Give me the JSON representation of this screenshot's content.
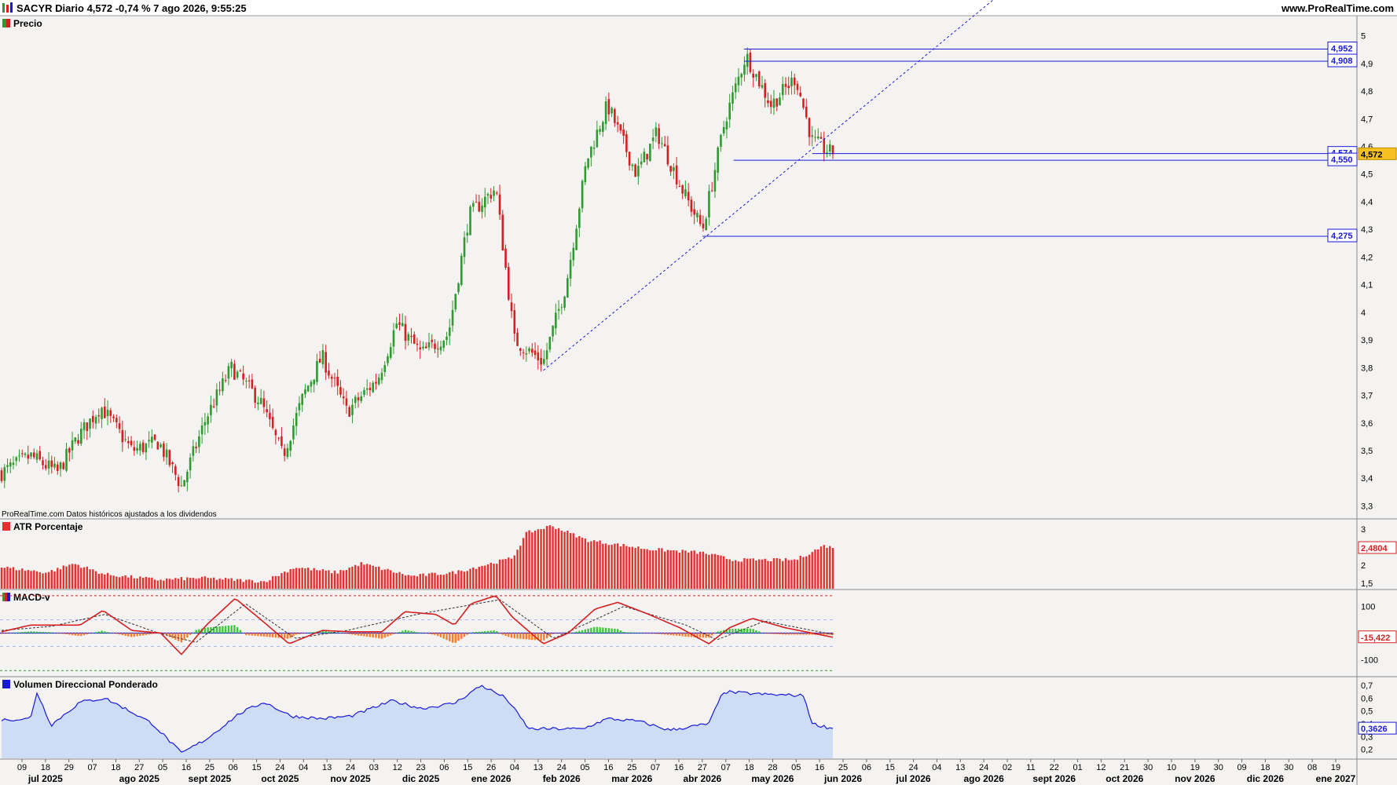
{
  "header": {
    "title": "SACYR Diario 4,572 -0,74 % 7 ago 2026, 9:55:25",
    "site": "www.ProRealTime.com"
  },
  "panels": {
    "price": {
      "title": "Precio",
      "note": "ProRealTime.com  Datos históricos ajustados a los dividendos",
      "icon": "candlestick-icon"
    },
    "atr": {
      "title": "ATR Porcentaje",
      "current_label": "2,4804"
    },
    "macd": {
      "title": "MACD-v",
      "current_label": "-15,422"
    },
    "vdp": {
      "title": "Volumen Direccional Ponderado",
      "current_label": "0,3626"
    }
  },
  "levels": [
    {
      "value": 4.952,
      "label": "4,952"
    },
    {
      "value": 4.908,
      "label": "4,908"
    },
    {
      "value": 4.574,
      "label": "4,574"
    },
    {
      "value": 4.55,
      "label": "4,550"
    },
    {
      "value": 4.275,
      "label": "4,275"
    }
  ],
  "last_price_label": "4,572",
  "x_axis": {
    "day_ticks": [
      "09",
      "18",
      "29",
      "07",
      "18",
      "27",
      "05",
      "16",
      "25",
      "06",
      "15",
      "24",
      "04",
      "13",
      "24",
      "03",
      "12",
      "23",
      "06",
      "15",
      "26",
      "04",
      "13",
      "24",
      "05",
      "16",
      "25",
      "07",
      "16",
      "27",
      "07",
      "18",
      "28",
      "05",
      "16",
      "25",
      "06",
      "15",
      "24",
      "04",
      "13",
      "24",
      "02",
      "11",
      "22",
      "01",
      "12",
      "21",
      "30",
      "10",
      "19",
      "30",
      "09",
      "18",
      "30",
      "08",
      "19"
    ],
    "months": [
      "jul 2025",
      "ago 2025",
      "sept 2025",
      "oct 2025",
      "nov 2025",
      "dic 2025",
      "ene 2026",
      "feb 2026",
      "mar 2026",
      "abr 2026",
      "may 2026",
      "jun 2026",
      "jul 2026",
      "ago 2026",
      "sept 2026",
      "oct 2026",
      "nov 2026",
      "dic 2026",
      "ene 2027"
    ]
  },
  "colors": {
    "up": "#2f9a2f",
    "down": "#d42020",
    "atr": "#e53030",
    "macd": "#d42020",
    "signal": "#333333",
    "hist_pos": "#3cc83c",
    "hist_neg": "#ff7a2a",
    "vdp_line": "#1a1ad6",
    "vdp_fill": "#cfdcf5",
    "level": "#1a1ad6",
    "trend": "#1a1ad6"
  },
  "chart_data": [
    {
      "type": "candlestick",
      "title": "Precio",
      "ylim": [
        3.27,
        5.05
      ],
      "y_ticks": [
        "5",
        "4,9",
        "4,8",
        "4,7",
        "4,6",
        "4,5",
        "4,4",
        "4,3",
        "4,2",
        "4,1",
        "4",
        "3,9",
        "3,8",
        "3,7",
        "3,6",
        "3,5",
        "3,4",
        "3,3"
      ],
      "approx_close_path": [
        {
          "date": "2025-07-01",
          "close": 3.42
        },
        {
          "date": "2025-07-15",
          "close": 3.48
        },
        {
          "date": "2025-07-28",
          "close": 3.42
        },
        {
          "date": "2025-08-07",
          "close": 3.55
        },
        {
          "date": "2025-08-18",
          "close": 3.66
        },
        {
          "date": "2025-09-02",
          "close": 3.5
        },
        {
          "date": "2025-09-15",
          "close": 3.53
        },
        {
          "date": "2025-09-26",
          "close": 3.37
        },
        {
          "date": "2025-10-08",
          "close": 3.62
        },
        {
          "date": "2025-10-20",
          "close": 3.8
        },
        {
          "date": "2025-11-03",
          "close": 3.68
        },
        {
          "date": "2025-11-14",
          "close": 3.48
        },
        {
          "date": "2025-11-24",
          "close": 3.7
        },
        {
          "date": "2025-12-03",
          "close": 3.84
        },
        {
          "date": "2025-12-15",
          "close": 3.64
        },
        {
          "date": "2025-12-30",
          "close": 3.76
        },
        {
          "date": "2026-01-08",
          "close": 3.96
        },
        {
          "date": "2026-01-20",
          "close": 3.85
        },
        {
          "date": "2026-02-02",
          "close": 3.92
        },
        {
          "date": "2026-02-12",
          "close": 4.35
        },
        {
          "date": "2026-02-25",
          "close": 4.45
        },
        {
          "date": "2026-03-06",
          "close": 3.9
        },
        {
          "date": "2026-03-20",
          "close": 3.82
        },
        {
          "date": "2026-03-31",
          "close": 4.1
        },
        {
          "date": "2026-04-10",
          "close": 4.55
        },
        {
          "date": "2026-04-20",
          "close": 4.75
        },
        {
          "date": "2026-05-04",
          "close": 4.5
        },
        {
          "date": "2026-05-14",
          "close": 4.65
        },
        {
          "date": "2026-05-27",
          "close": 4.43
        },
        {
          "date": "2026-06-05",
          "close": 4.3
        },
        {
          "date": "2026-06-16",
          "close": 4.7
        },
        {
          "date": "2026-06-26",
          "close": 4.93
        },
        {
          "date": "2026-07-08",
          "close": 4.75
        },
        {
          "date": "2026-07-20",
          "close": 4.85
        },
        {
          "date": "2026-07-28",
          "close": 4.62
        },
        {
          "date": "2026-08-07",
          "close": 4.572
        }
      ],
      "trendline": [
        {
          "date": "2026-03-20",
          "value": 3.79
        },
        {
          "date": "2026-07-23",
          "value": 4.56
        }
      ]
    },
    {
      "type": "bar",
      "title": "ATR Porcentaje",
      "ylim": [
        1.35,
        3.2
      ],
      "y_ticks": [
        "3",
        "2,5",
        "2",
        "1,5"
      ],
      "last_value": 2.4804,
      "approx_values": [
        {
          "date": "2025-07-01",
          "value": 1.95
        },
        {
          "date": "2025-07-23",
          "value": 1.8
        },
        {
          "date": "2025-08-05",
          "value": 2.05
        },
        {
          "date": "2025-08-20",
          "value": 1.75
        },
        {
          "date": "2025-09-15",
          "value": 1.6
        },
        {
          "date": "2025-10-06",
          "value": 1.65
        },
        {
          "date": "2025-11-05",
          "value": 1.55
        },
        {
          "date": "2025-11-20",
          "value": 1.95
        },
        {
          "date": "2025-12-10",
          "value": 1.8
        },
        {
          "date": "2025-12-22",
          "value": 2.05
        },
        {
          "date": "2026-01-15",
          "value": 1.7
        },
        {
          "date": "2026-02-05",
          "value": 1.8
        },
        {
          "date": "2026-03-05",
          "value": 2.2
        },
        {
          "date": "2026-03-12",
          "value": 2.9
        },
        {
          "date": "2026-03-24",
          "value": 3.1
        },
        {
          "date": "2026-04-10",
          "value": 2.7
        },
        {
          "date": "2026-05-10",
          "value": 2.45
        },
        {
          "date": "2026-06-05",
          "value": 2.35
        },
        {
          "date": "2026-06-20",
          "value": 2.15
        },
        {
          "date": "2026-07-20",
          "value": 2.15
        },
        {
          "date": "2026-08-03",
          "value": 2.55
        },
        {
          "date": "2026-08-07",
          "value": 2.48
        }
      ]
    },
    {
      "type": "line",
      "title": "MACD-v",
      "ylim": [
        -160,
        160
      ],
      "y_ticks": [
        "100",
        "-100"
      ],
      "last_value": -15.422,
      "series": [
        {
          "name": "MACD-v",
          "points": [
            {
              "date": "2025-07-01",
              "value": 5
            },
            {
              "date": "2025-07-15",
              "value": 30
            },
            {
              "date": "2025-08-08",
              "value": 30
            },
            {
              "date": "2025-08-19",
              "value": 85
            },
            {
              "date": "2025-09-02",
              "value": 10
            },
            {
              "date": "2025-09-16",
              "value": 0
            },
            {
              "date": "2025-09-26",
              "value": -80
            },
            {
              "date": "2025-10-08",
              "value": 30
            },
            {
              "date": "2025-10-22",
              "value": 130
            },
            {
              "date": "2025-11-05",
              "value": 40
            },
            {
              "date": "2025-11-17",
              "value": -40
            },
            {
              "date": "2025-12-03",
              "value": 10
            },
            {
              "date": "2025-12-17",
              "value": 5
            },
            {
              "date": "2026-01-01",
              "value": 5
            },
            {
              "date": "2026-01-12",
              "value": 80
            },
            {
              "date": "2026-01-27",
              "value": 70
            },
            {
              "date": "2026-02-05",
              "value": 30
            },
            {
              "date": "2026-02-13",
              "value": 110
            },
            {
              "date": "2026-02-25",
              "value": 140
            },
            {
              "date": "2026-03-05",
              "value": 60
            },
            {
              "date": "2026-03-20",
              "value": -40
            },
            {
              "date": "2026-04-01",
              "value": 0
            },
            {
              "date": "2026-04-14",
              "value": 90
            },
            {
              "date": "2026-04-25",
              "value": 115
            },
            {
              "date": "2026-05-10",
              "value": 70
            },
            {
              "date": "2026-05-25",
              "value": 20
            },
            {
              "date": "2026-06-08",
              "value": -40
            },
            {
              "date": "2026-06-18",
              "value": 20
            },
            {
              "date": "2026-06-29",
              "value": 55
            },
            {
              "date": "2026-07-15",
              "value": 20
            },
            {
              "date": "2026-08-07",
              "value": -15.422
            }
          ]
        },
        {
          "name": "Señal",
          "points": [
            {
              "date": "2025-07-01",
              "value": 10
            },
            {
              "date": "2025-07-25",
              "value": 25
            },
            {
              "date": "2025-08-20",
              "value": 70
            },
            {
              "date": "2025-09-15",
              "value": 0
            },
            {
              "date": "2025-10-03",
              "value": -35
            },
            {
              "date": "2025-10-27",
              "value": 110
            },
            {
              "date": "2025-11-20",
              "value": -20
            },
            {
              "date": "2025-12-15",
              "value": 10
            },
            {
              "date": "2026-01-18",
              "value": 70
            },
            {
              "date": "2026-02-27",
              "value": 125
            },
            {
              "date": "2026-03-25",
              "value": -20
            },
            {
              "date": "2026-04-28",
              "value": 100
            },
            {
              "date": "2026-05-28",
              "value": 30
            },
            {
              "date": "2026-06-12",
              "value": -25
            },
            {
              "date": "2026-07-05",
              "value": 45
            },
            {
              "date": "2026-08-07",
              "value": -5
            }
          ]
        }
      ]
    },
    {
      "type": "area",
      "title": "Volumen Direccional Ponderado",
      "ylim": [
        0.13,
        0.75
      ],
      "y_ticks": [
        "0,7",
        "0,6",
        "0,5",
        "0,4",
        "0,3",
        "0,2"
      ],
      "last_value": 0.3626,
      "approx_values": [
        {
          "date": "2025-07-01",
          "value": 0.43
        },
        {
          "date": "2025-07-15",
          "value": 0.44
        },
        {
          "date": "2025-07-18",
          "value": 0.65
        },
        {
          "date": "2025-07-25",
          "value": 0.39
        },
        {
          "date": "2025-08-08",
          "value": 0.57
        },
        {
          "date": "2025-08-20",
          "value": 0.6
        },
        {
          "date": "2025-09-01",
          "value": 0.5
        },
        {
          "date": "2025-09-12",
          "value": 0.4
        },
        {
          "date": "2025-09-26",
          "value": 0.17
        },
        {
          "date": "2025-10-08",
          "value": 0.28
        },
        {
          "date": "2025-10-24",
          "value": 0.48
        },
        {
          "date": "2025-11-05",
          "value": 0.57
        },
        {
          "date": "2025-11-18",
          "value": 0.46
        },
        {
          "date": "2025-12-03",
          "value": 0.44
        },
        {
          "date": "2025-12-17",
          "value": 0.46
        },
        {
          "date": "2026-01-06",
          "value": 0.58
        },
        {
          "date": "2026-01-20",
          "value": 0.52
        },
        {
          "date": "2026-02-05",
          "value": 0.56
        },
        {
          "date": "2026-02-18",
          "value": 0.7
        },
        {
          "date": "2026-03-02",
          "value": 0.6
        },
        {
          "date": "2026-03-13",
          "value": 0.36
        },
        {
          "date": "2026-03-25",
          "value": 0.36
        },
        {
          "date": "2026-04-08",
          "value": 0.36
        },
        {
          "date": "2026-04-20",
          "value": 0.44
        },
        {
          "date": "2026-05-05",
          "value": 0.42
        },
        {
          "date": "2026-05-20",
          "value": 0.35
        },
        {
          "date": "2026-06-08",
          "value": 0.4
        },
        {
          "date": "2026-06-15",
          "value": 0.65
        },
        {
          "date": "2026-07-05",
          "value": 0.63
        },
        {
          "date": "2026-07-24",
          "value": 0.62
        },
        {
          "date": "2026-07-28",
          "value": 0.4
        },
        {
          "date": "2026-08-07",
          "value": 0.3626
        }
      ]
    }
  ]
}
